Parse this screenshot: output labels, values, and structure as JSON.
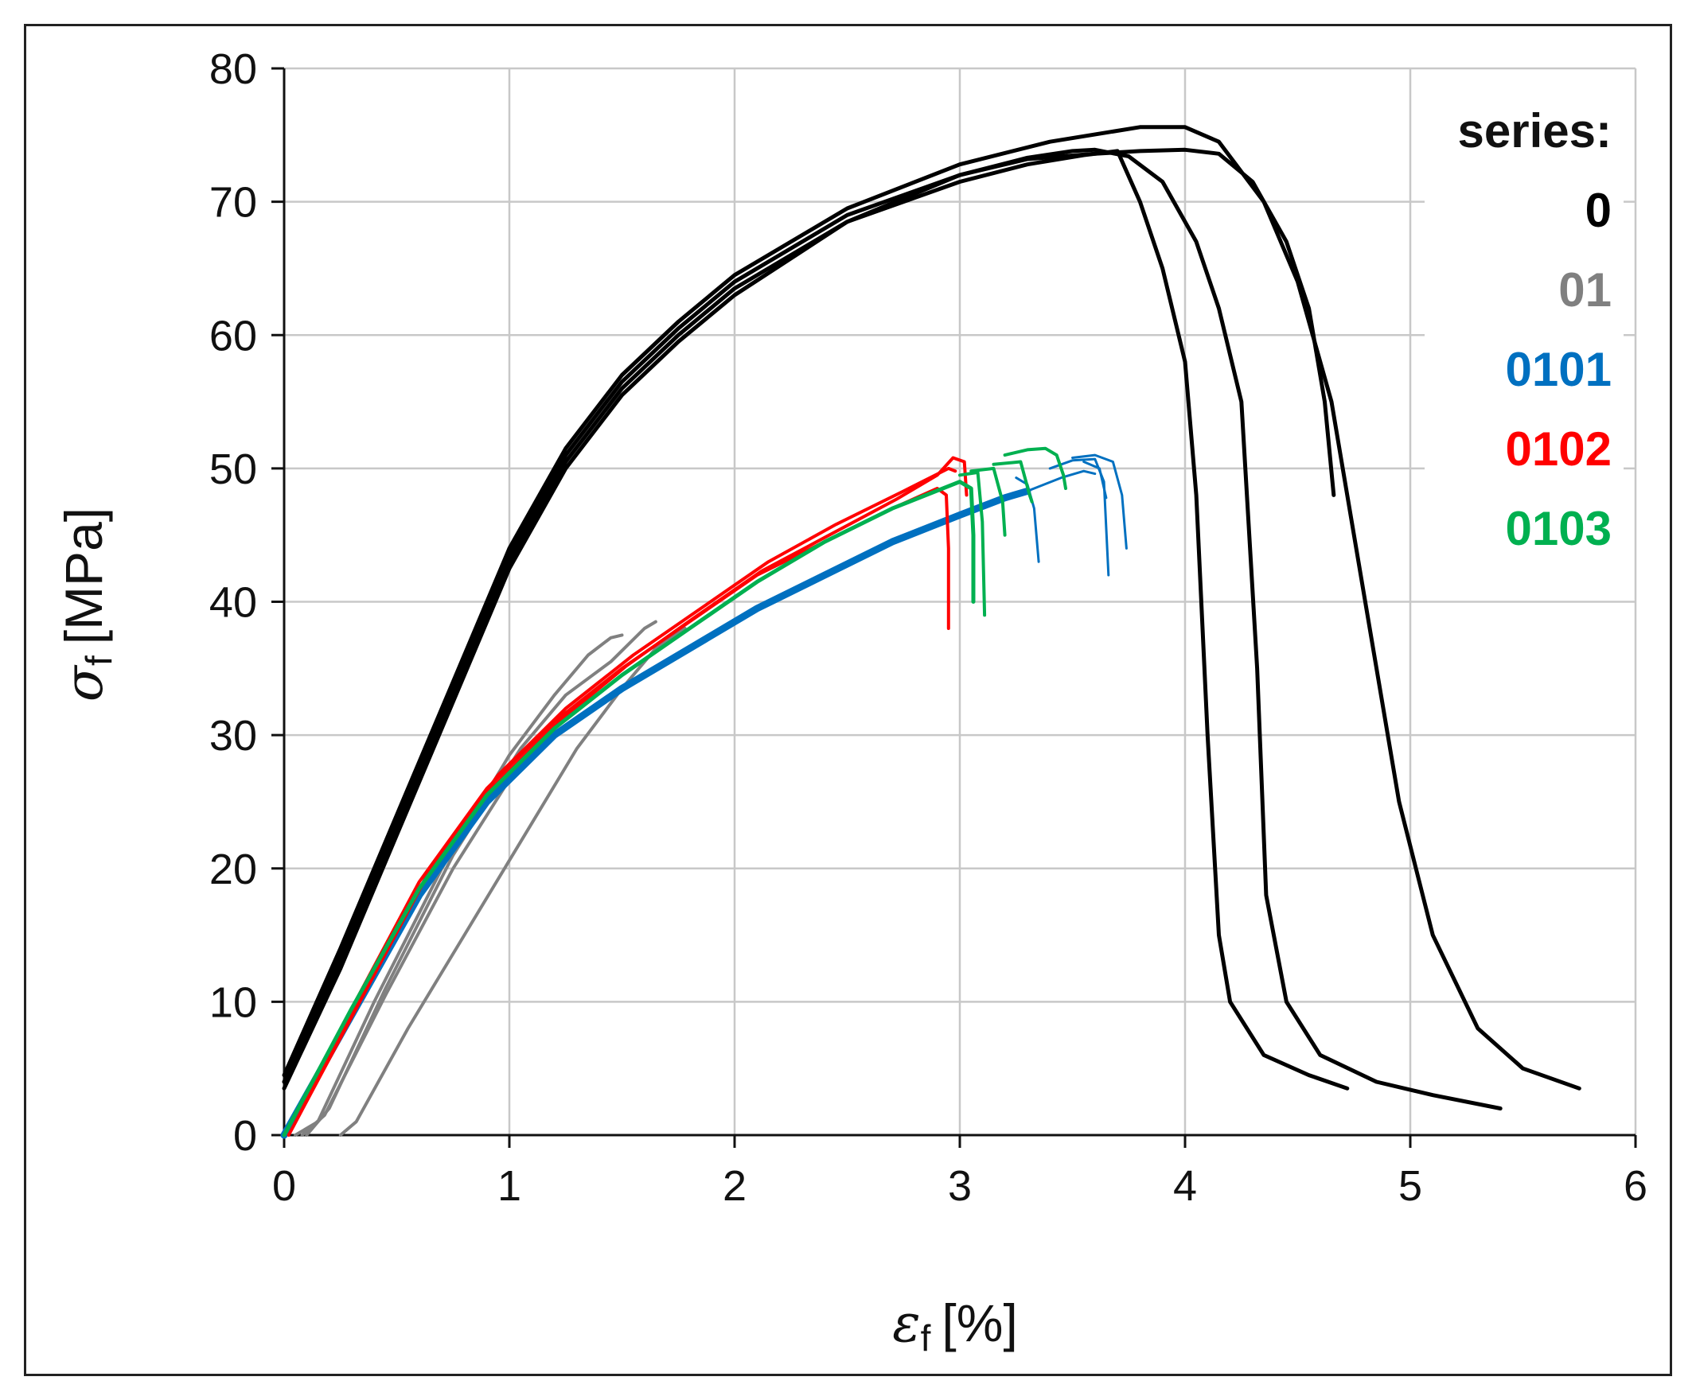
{
  "chart_data": {
    "type": "line",
    "title": "",
    "xlabel": {
      "symbol": "ε",
      "subscript": "f",
      "unit": "[%]"
    },
    "ylabel": {
      "symbol": "σ",
      "subscript": "f",
      "unit": "[MPa]"
    },
    "xlim": [
      0,
      6
    ],
    "ylim": [
      0,
      80
    ],
    "xticks": [
      0,
      1,
      2,
      3,
      4,
      5,
      6
    ],
    "yticks": [
      0,
      10,
      20,
      30,
      40,
      50,
      60,
      70,
      80
    ],
    "grid": true,
    "legend": {
      "title": "series:",
      "placement": "top-right",
      "entries": [
        {
          "label": "0",
          "color": "#000000"
        },
        {
          "label": "01",
          "color": "#808080"
        },
        {
          "label": "0101",
          "color": "#0070C0"
        },
        {
          "label": "0102",
          "color": "#FF0000"
        },
        {
          "label": "0103",
          "color": "#00B050"
        }
      ]
    },
    "series": [
      {
        "name": "0",
        "color": "#000000",
        "width": 5,
        "points": [
          [
            0,
            4
          ],
          [
            0.25,
            13
          ],
          [
            0.5,
            23
          ],
          [
            0.75,
            33
          ],
          [
            1,
            43
          ],
          [
            1.25,
            50.5
          ],
          [
            1.5,
            56
          ],
          [
            1.75,
            60
          ],
          [
            2,
            63.5
          ],
          [
            2.5,
            68.5
          ],
          [
            3,
            71.5
          ],
          [
            3.3,
            72.8
          ],
          [
            3.55,
            73.5
          ],
          [
            3.7,
            73.8
          ],
          [
            3.8,
            70
          ],
          [
            3.9,
            65
          ],
          [
            4,
            58
          ],
          [
            4.05,
            48
          ],
          [
            4.1,
            30
          ],
          [
            4.15,
            15
          ],
          [
            4.2,
            10
          ],
          [
            4.35,
            6
          ],
          [
            4.55,
            4.5
          ],
          [
            4.72,
            3.5
          ]
        ]
      },
      {
        "name": "0",
        "color": "#000000",
        "width": 5,
        "points": [
          [
            0,
            4
          ],
          [
            0.25,
            13.5
          ],
          [
            0.5,
            23.5
          ],
          [
            0.75,
            33.5
          ],
          [
            1,
            43.5
          ],
          [
            1.25,
            51
          ],
          [
            1.5,
            56.5
          ],
          [
            1.75,
            60.5
          ],
          [
            2,
            64
          ],
          [
            2.5,
            69
          ],
          [
            3,
            72
          ],
          [
            3.3,
            73.3
          ],
          [
            3.5,
            73.8
          ],
          [
            3.6,
            73.9
          ],
          [
            3.75,
            73.4
          ],
          [
            3.9,
            71.5
          ],
          [
            4.05,
            67
          ],
          [
            4.15,
            62
          ],
          [
            4.25,
            55
          ],
          [
            4.32,
            35
          ],
          [
            4.36,
            18
          ],
          [
            4.45,
            10
          ],
          [
            4.6,
            6
          ],
          [
            4.85,
            4
          ],
          [
            5.1,
            3
          ],
          [
            5.4,
            2
          ]
        ]
      },
      {
        "name": "0",
        "color": "#000000",
        "width": 5,
        "points": [
          [
            0,
            3.5
          ],
          [
            0.25,
            12.5
          ],
          [
            0.5,
            22.5
          ],
          [
            0.75,
            32.5
          ],
          [
            1,
            42.5
          ],
          [
            1.25,
            50
          ],
          [
            1.5,
            55.5
          ],
          [
            1.75,
            59.5
          ],
          [
            2,
            63
          ],
          [
            2.5,
            68.5
          ],
          [
            3,
            72
          ],
          [
            3.3,
            73.2
          ],
          [
            3.6,
            73.6
          ],
          [
            3.8,
            73.8
          ],
          [
            4,
            73.9
          ],
          [
            4.15,
            73.6
          ],
          [
            4.3,
            71.5
          ],
          [
            4.45,
            67
          ],
          [
            4.55,
            62
          ],
          [
            4.62,
            55
          ],
          [
            4.66,
            48
          ]
        ]
      },
      {
        "name": "0",
        "color": "#000000",
        "width": 5,
        "points": [
          [
            0,
            4.5
          ],
          [
            0.25,
            14
          ],
          [
            0.5,
            24
          ],
          [
            0.75,
            34
          ],
          [
            1,
            44
          ],
          [
            1.25,
            51.5
          ],
          [
            1.5,
            57
          ],
          [
            1.75,
            61
          ],
          [
            2,
            64.5
          ],
          [
            2.5,
            69.5
          ],
          [
            3,
            72.8
          ],
          [
            3.4,
            74.5
          ],
          [
            3.8,
            75.6
          ],
          [
            4,
            75.6
          ],
          [
            4.15,
            74.5
          ],
          [
            4.35,
            70
          ],
          [
            4.5,
            64
          ],
          [
            4.65,
            55
          ],
          [
            4.8,
            40
          ],
          [
            4.95,
            25
          ],
          [
            5.1,
            15
          ],
          [
            5.3,
            8
          ],
          [
            5.5,
            5
          ],
          [
            5.75,
            3.5
          ]
        ]
      },
      {
        "name": "01",
        "color": "#808080",
        "width": 4,
        "points": [
          [
            0.05,
            0
          ],
          [
            0.15,
            1
          ],
          [
            0.4,
            10
          ],
          [
            0.7,
            20
          ],
          [
            1,
            28.5
          ],
          [
            1.2,
            33
          ],
          [
            1.35,
            36
          ],
          [
            1.45,
            37.3
          ],
          [
            1.5,
            37.5
          ]
        ]
      },
      {
        "name": "01",
        "color": "#808080",
        "width": 4,
        "points": [
          [
            0.1,
            0
          ],
          [
            0.2,
            2
          ],
          [
            0.45,
            11
          ],
          [
            0.75,
            21
          ],
          [
            1.05,
            29
          ],
          [
            1.25,
            33
          ],
          [
            1.45,
            35.5
          ],
          [
            1.6,
            38
          ],
          [
            1.65,
            38.5
          ]
        ]
      },
      {
        "name": "01",
        "color": "#808080",
        "width": 4,
        "points": [
          [
            0.25,
            0
          ],
          [
            0.32,
            1
          ],
          [
            0.55,
            8
          ],
          [
            0.8,
            15
          ],
          [
            1.05,
            22
          ],
          [
            1.3,
            29
          ],
          [
            1.5,
            33.5
          ],
          [
            1.65,
            36.5
          ],
          [
            1.78,
            38
          ]
        ]
      },
      {
        "name": "01",
        "color": "#808080",
        "width": 4,
        "points": [
          [
            0.08,
            0
          ],
          [
            0.18,
            1.5
          ],
          [
            0.45,
            10.5
          ],
          [
            0.75,
            20
          ],
          [
            1.05,
            28
          ],
          [
            1.25,
            32
          ],
          [
            1.4,
            34
          ]
        ]
      },
      {
        "name": "0101",
        "color": "#0070C0",
        "width": 9,
        "points": [
          [
            0,
            0
          ],
          [
            0.3,
            9
          ],
          [
            0.6,
            18
          ],
          [
            0.9,
            25
          ],
          [
            1.2,
            30
          ],
          [
            1.5,
            33.5
          ],
          [
            1.8,
            36.5
          ],
          [
            2.1,
            39.5
          ],
          [
            2.4,
            42
          ],
          [
            2.7,
            44.5
          ],
          [
            3,
            46.5
          ],
          [
            3.2,
            47.8
          ],
          [
            3.3,
            48.3
          ]
        ]
      },
      {
        "name": "0101",
        "color": "#0070C0",
        "width": 3,
        "points": [
          [
            3.3,
            48.3
          ],
          [
            3.45,
            49.3
          ],
          [
            3.55,
            49.8
          ],
          [
            3.6,
            49.6
          ]
        ]
      },
      {
        "name": "0101",
        "color": "#0070C0",
        "width": 3,
        "points": [
          [
            3.25,
            49.3
          ],
          [
            3.3,
            48.8
          ],
          [
            3.33,
            47
          ],
          [
            3.35,
            43
          ]
        ]
      },
      {
        "name": "0101",
        "color": "#0070C0",
        "width": 3,
        "points": [
          [
            3.4,
            50
          ],
          [
            3.5,
            50.6
          ],
          [
            3.6,
            50.7
          ],
          [
            3.64,
            49
          ],
          [
            3.66,
            42
          ]
        ]
      },
      {
        "name": "0101",
        "color": "#0070C0",
        "width": 3,
        "points": [
          [
            3.5,
            50.8
          ],
          [
            3.6,
            51
          ],
          [
            3.68,
            50.5
          ],
          [
            3.72,
            48
          ],
          [
            3.74,
            44
          ]
        ]
      },
      {
        "name": "0101",
        "color": "#0070C0",
        "width": 3,
        "points": [
          [
            3.55,
            50.5
          ],
          [
            3.62,
            50
          ],
          [
            3.65,
            47.8
          ]
        ]
      },
      {
        "name": "0102",
        "color": "#FF0000",
        "width": 4,
        "points": [
          [
            0,
            0
          ],
          [
            0.3,
            9.5
          ],
          [
            0.6,
            19
          ],
          [
            0.9,
            26
          ],
          [
            1.2,
            31
          ],
          [
            1.5,
            35
          ],
          [
            1.8,
            38.5
          ],
          [
            2.1,
            42
          ],
          [
            2.4,
            44.5
          ],
          [
            2.7,
            47
          ],
          [
            2.9,
            48.5
          ],
          [
            2.94,
            48
          ],
          [
            2.95,
            44
          ],
          [
            2.95,
            38
          ]
        ]
      },
      {
        "name": "0102",
        "color": "#FF0000",
        "width": 4,
        "points": [
          [
            0.02,
            0
          ],
          [
            0.32,
            9.5
          ],
          [
            0.62,
            19
          ],
          [
            0.92,
            26
          ],
          [
            1.22,
            31
          ],
          [
            1.52,
            35.2
          ],
          [
            1.82,
            38.8
          ],
          [
            2.12,
            42.3
          ],
          [
            2.42,
            45
          ],
          [
            2.72,
            47.7
          ],
          [
            2.9,
            49.5
          ],
          [
            2.97,
            50.8
          ],
          [
            3.02,
            50.5
          ],
          [
            3.03,
            48
          ]
        ]
      },
      {
        "name": "0102",
        "color": "#FF0000",
        "width": 4,
        "points": [
          [
            0,
            0
          ],
          [
            0.35,
            10.5
          ],
          [
            0.65,
            20
          ],
          [
            0.95,
            27
          ],
          [
            1.25,
            32
          ],
          [
            1.55,
            36
          ],
          [
            1.85,
            39.5
          ],
          [
            2.15,
            43
          ],
          [
            2.45,
            45.8
          ],
          [
            2.75,
            48.3
          ],
          [
            2.95,
            50
          ],
          [
            2.98,
            49.8
          ]
        ]
      },
      {
        "name": "0103",
        "color": "#00B050",
        "width": 5,
        "points": [
          [
            0,
            0
          ],
          [
            0.3,
            9.5
          ],
          [
            0.6,
            18.5
          ],
          [
            0.9,
            25.5
          ],
          [
            1.2,
            30.5
          ],
          [
            1.5,
            34.5
          ],
          [
            1.8,
            38
          ],
          [
            2.1,
            41.5
          ],
          [
            2.4,
            44.5
          ],
          [
            2.7,
            47
          ],
          [
            3,
            49
          ],
          [
            3.05,
            48.5
          ],
          [
            3.06,
            45
          ],
          [
            3.06,
            40
          ]
        ]
      },
      {
        "name": "0103",
        "color": "#00B050",
        "width": 4,
        "points": [
          [
            3,
            49.5
          ],
          [
            3.08,
            49.7
          ],
          [
            3.1,
            46
          ],
          [
            3.11,
            39
          ]
        ]
      },
      {
        "name": "0103",
        "color": "#00B050",
        "width": 4,
        "points": [
          [
            3.05,
            49.8
          ],
          [
            3.15,
            50
          ],
          [
            3.19,
            47.5
          ],
          [
            3.2,
            45
          ]
        ]
      },
      {
        "name": "0103",
        "color": "#00B050",
        "width": 4,
        "points": [
          [
            3.15,
            50.3
          ],
          [
            3.27,
            50.5
          ],
          [
            3.31,
            48
          ],
          [
            3.32,
            47.5
          ]
        ]
      },
      {
        "name": "0103",
        "color": "#00B050",
        "width": 4,
        "points": [
          [
            3.2,
            51
          ],
          [
            3.3,
            51.4
          ],
          [
            3.38,
            51.5
          ],
          [
            3.43,
            51
          ],
          [
            3.46,
            49.5
          ],
          [
            3.47,
            48.5
          ]
        ]
      }
    ]
  }
}
